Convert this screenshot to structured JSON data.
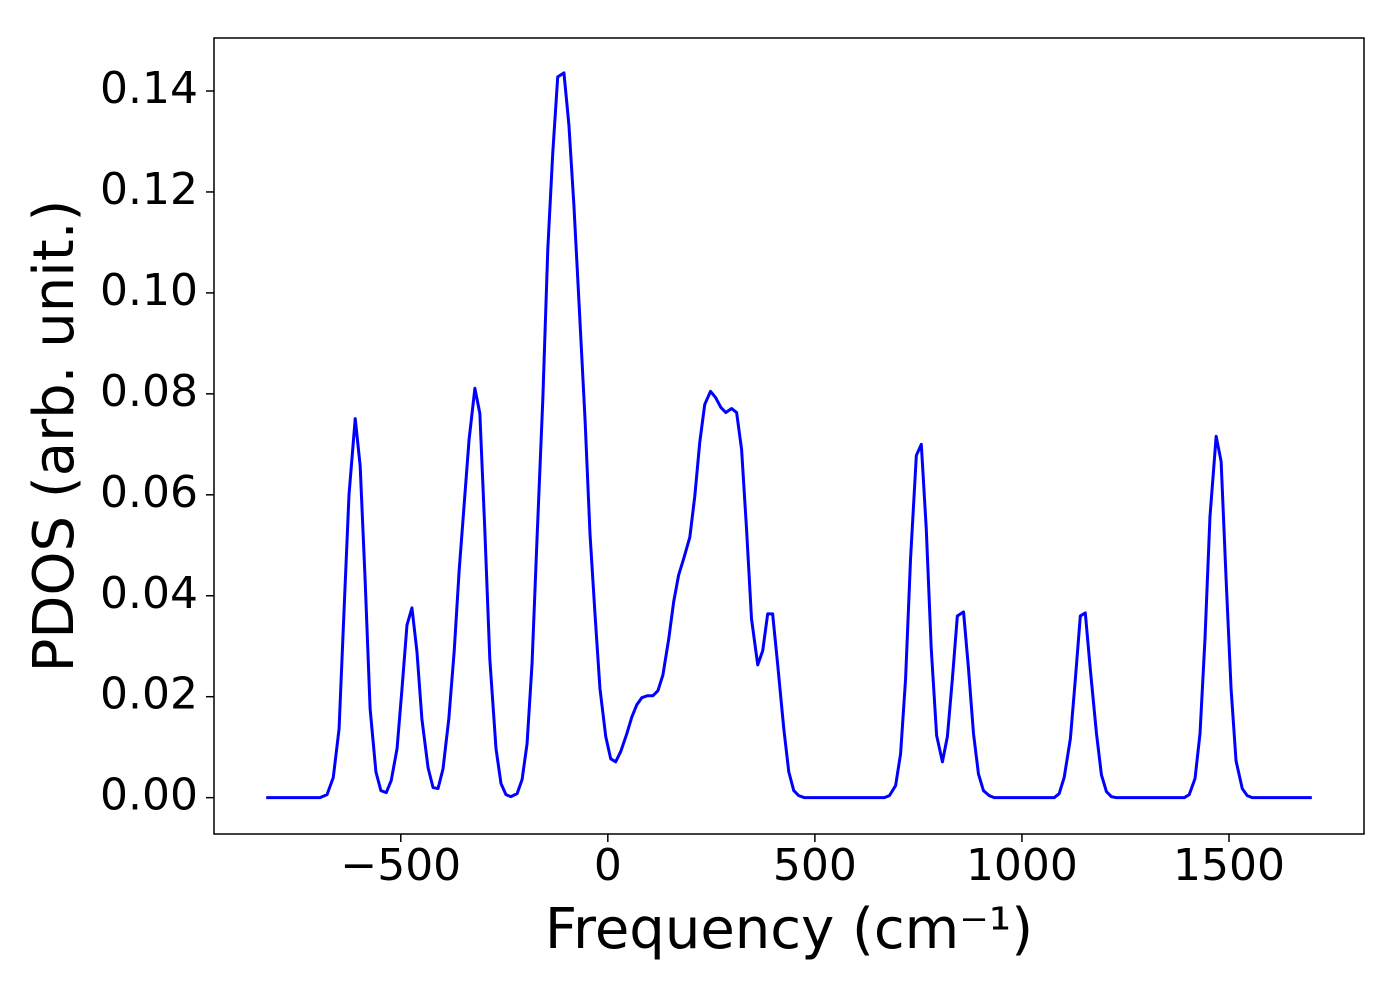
{
  "chart_data": {
    "type": "line",
    "x_label": "Frequency (cm⁻¹)",
    "y_label": "PDOS (arb. unit.)",
    "color": "#0000ff",
    "x": [
      -825,
      -695,
      -678,
      -663,
      -649,
      -637,
      -625,
      -610,
      -598,
      -586,
      -574,
      -560,
      -548,
      -535,
      -523,
      -509,
      -497,
      -485,
      -473,
      -461,
      -449,
      -434,
      -422,
      -410,
      -398,
      -384,
      -371,
      -359,
      -347,
      -335,
      -321,
      -309,
      -297,
      -285,
      -270,
      -258,
      -246,
      -234,
      -219,
      -207,
      -195,
      -183,
      -171,
      -157,
      -145,
      -133,
      -121,
      -106,
      -94,
      -82,
      -70,
      -55,
      -43,
      -31,
      -19,
      -5,
      7,
      19,
      31,
      46,
      58,
      70,
      82,
      96,
      109,
      121,
      133,
      147,
      159,
      171,
      183,
      198,
      210,
      222,
      234,
      248,
      260,
      273,
      285,
      299,
      311,
      323,
      335,
      347,
      362,
      374,
      386,
      398,
      410,
      425,
      437,
      449,
      461,
      475,
      668,
      680,
      695,
      707,
      719,
      731,
      745,
      757,
      769,
      781,
      794,
      808,
      820,
      832,
      844,
      859,
      871,
      883,
      895,
      907,
      921,
      933,
      1078,
      1090,
      1102,
      1117,
      1129,
      1141,
      1153,
      1165,
      1180,
      1192,
      1204,
      1216,
      1228,
      1392,
      1404,
      1418,
      1430,
      1442,
      1454,
      1469,
      1481,
      1493,
      1505,
      1517,
      1532,
      1544,
      1556,
      1700
    ],
    "values": [
      0,
      0,
      0.0006,
      0.004,
      0.0136,
      0.037,
      0.06,
      0.0751,
      0.0657,
      0.043,
      0.0176,
      0.0051,
      0.0014,
      0.001,
      0.0034,
      0.0097,
      0.0216,
      0.0342,
      0.0376,
      0.029,
      0.0156,
      0.0059,
      0.002,
      0.0018,
      0.0057,
      0.0156,
      0.029,
      0.045,
      0.058,
      0.071,
      0.0811,
      0.0761,
      0.053,
      0.0275,
      0.0097,
      0.0028,
      0.0006,
      0.0002,
      0.0008,
      0.0036,
      0.0107,
      0.0265,
      0.0512,
      0.0789,
      0.1086,
      0.1277,
      0.1428,
      0.1436,
      0.1333,
      0.1175,
      0.0987,
      0.0749,
      0.0522,
      0.0364,
      0.0216,
      0.0121,
      0.0077,
      0.0071,
      0.0091,
      0.0127,
      0.016,
      0.0184,
      0.0198,
      0.0202,
      0.0202,
      0.0212,
      0.0243,
      0.0314,
      0.0388,
      0.0441,
      0.0473,
      0.0516,
      0.0597,
      0.0704,
      0.0779,
      0.0805,
      0.0793,
      0.0773,
      0.0763,
      0.0771,
      0.0763,
      0.069,
      0.0532,
      0.0354,
      0.0263,
      0.0291,
      0.0364,
      0.0364,
      0.0265,
      0.0136,
      0.0051,
      0.0014,
      0.0004,
      0,
      0,
      0.0004,
      0.0024,
      0.0087,
      0.0235,
      0.0473,
      0.0678,
      0.07,
      0.0532,
      0.0295,
      0.0123,
      0.0071,
      0.0121,
      0.0235,
      0.036,
      0.0368,
      0.0255,
      0.0127,
      0.0047,
      0.0014,
      0.0004,
      0,
      0,
      0.0008,
      0.004,
      0.0117,
      0.0235,
      0.036,
      0.0366,
      0.0255,
      0.0127,
      0.0045,
      0.0012,
      0.0002,
      0,
      0,
      0.0006,
      0.0038,
      0.0127,
      0.0314,
      0.0556,
      0.0716,
      0.0666,
      0.0433,
      0.0216,
      0.0073,
      0.0018,
      0.0004,
      0,
      0
    ],
    "xlim": [
      -951,
      1826
    ],
    "ylim": [
      -0.0072,
      0.1505
    ],
    "xticks": [
      {
        "value": -500,
        "label": "−500"
      },
      0,
      500,
      1000,
      1500
    ],
    "yticks": [
      {
        "value": 0,
        "label": "0.00"
      },
      0.02,
      0.04,
      0.06,
      0.08,
      {
        "value": 0.1,
        "label": "0.10"
      },
      0.12,
      0.14
    ]
  }
}
